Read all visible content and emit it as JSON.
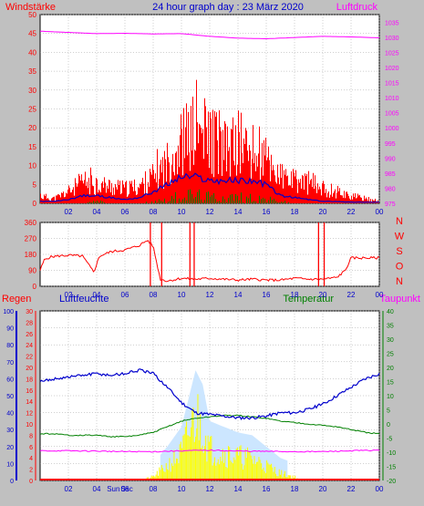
{
  "header": {
    "title": "24 hour graph day : 23 März 2020",
    "left_label": "Windstärke",
    "right_label": "Luftdruck"
  },
  "lower_labels": {
    "rain": "Regen",
    "humidity": "Luftfeuchte",
    "temperature": "Temperatur",
    "dewpoint": "Taupunkt"
  },
  "markers": {
    "sunrise": "Sun",
    "sunset": "Ssc"
  },
  "colors": {
    "background": "#c0c0c0",
    "plot_bg": "#ffffff",
    "grid": "#a0a0a0",
    "wind": "#ff0000",
    "gust_avg": "#0000cc",
    "wind_mean": "#008000",
    "pressure": "#ff00ff",
    "direction": "#ff0000",
    "humidity": "#0000cc",
    "temperature": "#008000",
    "dewpoint": "#ff00ff",
    "solar": "#ffff00",
    "uv": "#ffff00",
    "rain": "#ff0000"
  },
  "chart_data": [
    {
      "type": "bar",
      "name_hint": "wind-pressure",
      "x_ticks": [
        "02",
        "04",
        "06",
        "08",
        "10",
        "12",
        "14",
        "16",
        "18",
        "20",
        "22",
        "00"
      ],
      "left_ticks": [
        "0",
        "5",
        "10",
        "15",
        "20",
        "25",
        "30",
        "35",
        "40",
        "45",
        "50"
      ],
      "right_ticks": [
        "975",
        "980",
        "985",
        "990",
        "995",
        "1000",
        "1005",
        "1010",
        "1015",
        "1020",
        "1025",
        "1030",
        "1035"
      ],
      "left_range": [
        0,
        50
      ],
      "right_range": [
        975,
        1037.5
      ],
      "x_range_hours": [
        0,
        24
      ],
      "grid": true,
      "series": [
        {
          "axis": "left",
          "style": "bars",
          "color": "#ff0000",
          "x": [
            0,
            1,
            2,
            3,
            4,
            5,
            6,
            7,
            8,
            9,
            10,
            11,
            12,
            13,
            14,
            15,
            16,
            17,
            18,
            19,
            20,
            21,
            22,
            23,
            24
          ],
          "y": [
            3,
            2,
            5,
            9,
            8,
            7,
            6,
            7,
            11,
            17,
            26,
            30,
            28,
            22,
            25,
            21,
            18,
            11,
            9,
            9,
            6,
            5,
            3,
            2,
            1
          ]
        },
        {
          "axis": "left",
          "style": "line",
          "color": "#0000cc",
          "x": [
            0,
            1,
            2,
            3,
            4,
            5,
            6,
            7,
            8,
            9,
            10,
            11,
            12,
            13,
            14,
            15,
            16,
            17,
            18,
            19,
            20,
            21,
            22,
            23,
            24
          ],
          "y": [
            0.5,
            0.5,
            1,
            2,
            2,
            1.5,
            1,
            1.5,
            3,
            5,
            7,
            7,
            6,
            6,
            6,
            6,
            5,
            2,
            1.5,
            1,
            0.5,
            0.5,
            0.3,
            0.3,
            0.3
          ]
        },
        {
          "axis": "left",
          "style": "bars",
          "color": "#008000",
          "x": [
            0,
            1,
            2,
            3,
            4,
            5,
            6,
            7,
            8,
            9,
            10,
            11,
            12,
            13,
            14,
            15,
            16,
            17,
            18,
            19,
            20,
            21,
            22,
            23,
            24
          ],
          "y": [
            0,
            0,
            0,
            0,
            1,
            0,
            0,
            0,
            1,
            2,
            4,
            4,
            3,
            3,
            3,
            3,
            2,
            1,
            0,
            0,
            0,
            0,
            0,
            0,
            0
          ]
        },
        {
          "axis": "right",
          "style": "line",
          "color": "#ff00ff",
          "x": [
            0,
            2,
            4,
            6,
            8,
            10,
            12,
            14,
            16,
            18,
            20,
            22,
            24
          ],
          "y": [
            1032,
            1031.6,
            1031.2,
            1031.3,
            1031.1,
            1031.2,
            1030.3,
            1029.7,
            1029.5,
            1029.9,
            1030.3,
            1030.1,
            1029.8
          ]
        }
      ]
    },
    {
      "type": "line",
      "name_hint": "wind-direction",
      "x_ticks": [
        "02",
        "04",
        "06",
        "08",
        "10",
        "12",
        "14",
        "16",
        "18",
        "20",
        "22",
        "00"
      ],
      "left_ticks": [
        "0",
        "90",
        "180",
        "270",
        "360"
      ],
      "right_ticks": [
        "N",
        "W",
        "S",
        "O",
        "N"
      ],
      "left_range": [
        0,
        360
      ],
      "x_range_hours": [
        0,
        24
      ],
      "grid": true,
      "series": [
        {
          "color": "#ff0000",
          "x": [
            0,
            0.3,
            0.7,
            1.2,
            2,
            3,
            3.8,
            4.2,
            5,
            6,
            7,
            7.6,
            8,
            8.5,
            9,
            10,
            11,
            12,
            13,
            14,
            15,
            16,
            17,
            18,
            19,
            20,
            21,
            21.6,
            22,
            23,
            24
          ],
          "y": [
            90,
            150,
            165,
            170,
            175,
            170,
            80,
            170,
            195,
            205,
            230,
            260,
            225,
            40,
            30,
            45,
            40,
            45,
            40,
            35,
            40,
            35,
            35,
            45,
            40,
            40,
            50,
            90,
            160,
            160,
            160
          ]
        }
      ]
    },
    {
      "type": "line",
      "name_hint": "humidity-temperature",
      "x_ticks": [
        "02",
        "04",
        "06",
        "08",
        "10",
        "12",
        "14",
        "16",
        "18",
        "20",
        "22",
        "00"
      ],
      "rain_ticks": [
        "0",
        "10",
        "20",
        "30",
        "40",
        "50",
        "60",
        "70",
        "80",
        "90",
        "100"
      ],
      "humidity_ticks": [
        "0",
        "2",
        "4",
        "6",
        "8",
        "10",
        "12",
        "14",
        "16",
        "18",
        "20",
        "22",
        "24",
        "26",
        "28",
        "30"
      ],
      "temperature_ticks": [
        "-20",
        "-15",
        "-10",
        "-5",
        "0",
        "5",
        "10",
        "15",
        "20",
        "25",
        "30",
        "35",
        "40"
      ],
      "rain_range": [
        0,
        100
      ],
      "temperature_range": [
        -20,
        40
      ],
      "x_range_hours": [
        0,
        24
      ],
      "grid": true,
      "series": [
        {
          "label_key": "humidity",
          "color": "#0000cc",
          "scale": "rain",
          "x": [
            0,
            1,
            2,
            3,
            4,
            5,
            6,
            7,
            8,
            9,
            10,
            11,
            12,
            13,
            14,
            15,
            16,
            17,
            18,
            19,
            20,
            21,
            22,
            23,
            24
          ],
          "y": [
            58,
            60,
            61,
            62,
            63,
            62,
            63,
            65,
            63,
            55,
            46,
            40,
            39,
            38,
            37,
            37,
            38,
            40,
            40,
            42,
            45,
            50,
            55,
            60,
            63
          ]
        },
        {
          "label_key": "temperature",
          "color": "#008000",
          "scale": "temperature",
          "x": [
            0,
            1,
            2,
            3,
            4,
            5,
            6,
            7,
            8,
            9,
            10,
            11,
            12,
            13,
            14,
            15,
            16,
            17,
            18,
            19,
            20,
            21,
            22,
            23,
            24
          ],
          "y": [
            -3.5,
            -3.5,
            -4,
            -4,
            -4,
            -4.5,
            -4.5,
            -4,
            -3,
            -1,
            1,
            2,
            2.5,
            3,
            3,
            2.5,
            2,
            1,
            0.5,
            0,
            -0.5,
            -1,
            -2,
            -3,
            -3.5
          ]
        },
        {
          "label_key": "dewpoint",
          "color": "#ff00ff",
          "scale": "temperature",
          "x": [
            0,
            2,
            4,
            6,
            8,
            10,
            12,
            14,
            16,
            18,
            20,
            22,
            24
          ],
          "y": [
            -9.5,
            -9.5,
            -9.6,
            -9.8,
            -9.8,
            -9.5,
            -9.3,
            -9.6,
            -9.7,
            -9.8,
            -9.8,
            -9.5,
            -9.3
          ]
        },
        {
          "label_key": "solar",
          "color": "#ffff00",
          "scale": "temperature",
          "x": [
            7,
            8,
            9,
            10,
            10.5,
            11,
            11.5,
            12,
            13,
            14,
            15,
            16,
            17,
            18,
            18.5
          ],
          "y": [
            -20,
            -18,
            -12,
            -5,
            5,
            15,
            10,
            -3,
            -5,
            -7,
            -8,
            -12,
            -16,
            -18,
            -20
          ]
        }
      ]
    }
  ]
}
